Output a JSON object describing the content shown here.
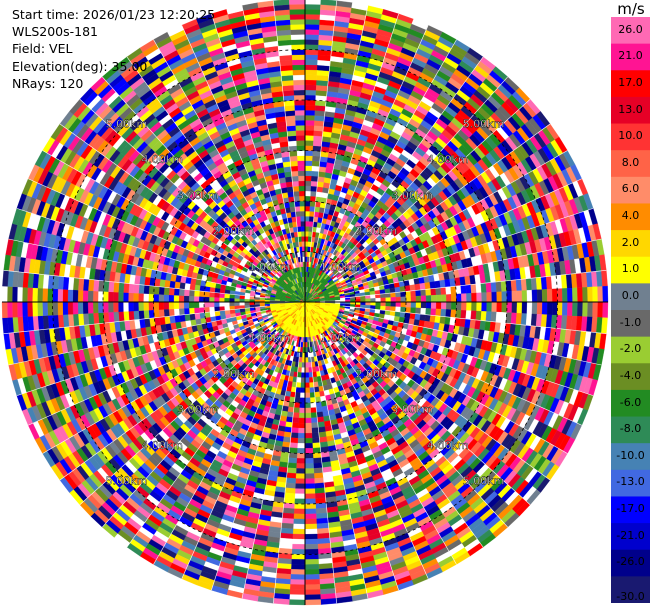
{
  "info": {
    "start_time": "Start time: 2026/01/23 12:20:25",
    "instrument": "WLS200s-181",
    "field": "Field: VEL",
    "elevation": "Elevation(deg): 35.00",
    "nrays": "NRays: 120"
  },
  "colorbar": {
    "unit": "m/s",
    "labels": [
      "26.0",
      "21.0",
      "17.0",
      "13.0",
      "10.0",
      "8.0",
      "6.0",
      "4.0",
      "2.0",
      "1.0",
      "0.0",
      "-1.0",
      "-2.0",
      "-4.0",
      "-6.0",
      "-8.0",
      "-10.0",
      "-13.0",
      "-17.0",
      "-21.0",
      "-26.0",
      "-30.0"
    ],
    "colors": [
      "#ff69b4",
      "#ff1493",
      "#ff0000",
      "#e60026",
      "#ff3333",
      "#ff6347",
      "#ff8c69",
      "#ff8c00",
      "#ffd700",
      "#ffff00",
      "#708090",
      "#696969",
      "#9acd32",
      "#6b8e23",
      "#228b22",
      "#2e8b57",
      "#4682b4",
      "#4169e1",
      "#0000ff",
      "#0000cd",
      "#00008b",
      "#191970"
    ]
  },
  "chart_data": {
    "type": "ppi",
    "field": "VEL",
    "units": "m/s",
    "elevation_deg": 35.0,
    "nrays": 120,
    "max_range_km": 6.0,
    "range_ring_labels": [
      "1.00km",
      "2.00km",
      "3.00km",
      "4.00km",
      "5.00km"
    ],
    "color_scale_min": -30.0,
    "color_scale_max": 26.0,
    "near_field": {
      "north_half_dominant_color": "#228b22",
      "south_half_dominant_color": "#ffff00",
      "extent_km": 1.0
    }
  }
}
